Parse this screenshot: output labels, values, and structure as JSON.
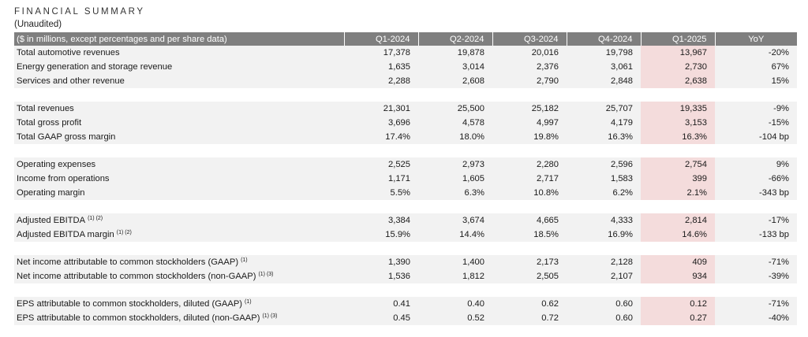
{
  "header": {
    "title": "FINANCIAL SUMMARY",
    "subtitle": "(Unaudited)"
  },
  "table": {
    "columns": [
      "($ in millions, except percentages and per share data)",
      "Q1-2024",
      "Q2-2024",
      "Q3-2024",
      "Q4-2024",
      "Q1-2025",
      "YoY"
    ],
    "groups": [
      [
        {
          "label": "Total automotive revenues",
          "note": "",
          "values": [
            "17,378",
            "19,878",
            "20,016",
            "19,798",
            "13,967",
            "-20%"
          ]
        },
        {
          "label": "Energy generation and storage revenue",
          "note": "",
          "values": [
            "1,635",
            "3,014",
            "2,376",
            "3,061",
            "2,730",
            "67%"
          ]
        },
        {
          "label": "Services and other revenue",
          "note": "",
          "values": [
            "2,288",
            "2,608",
            "2,790",
            "2,848",
            "2,638",
            "15%"
          ]
        }
      ],
      [
        {
          "label": "Total revenues",
          "note": "",
          "values": [
            "21,301",
            "25,500",
            "25,182",
            "25,707",
            "19,335",
            "-9%"
          ]
        },
        {
          "label": "Total gross profit",
          "note": "",
          "values": [
            "3,696",
            "4,578",
            "4,997",
            "4,179",
            "3,153",
            "-15%"
          ]
        },
        {
          "label": "Total GAAP gross margin",
          "note": "",
          "values": [
            "17.4%",
            "18.0%",
            "19.8%",
            "16.3%",
            "16.3%",
            "-104 bp"
          ]
        }
      ],
      [
        {
          "label": "Operating expenses",
          "note": "",
          "values": [
            "2,525",
            "2,973",
            "2,280",
            "2,596",
            "2,754",
            "9%"
          ]
        },
        {
          "label": "Income from operations",
          "note": "",
          "values": [
            "1,171",
            "1,605",
            "2,717",
            "1,583",
            "399",
            "-66%"
          ]
        },
        {
          "label": "Operating margin",
          "note": "",
          "values": [
            "5.5%",
            "6.3%",
            "10.8%",
            "6.2%",
            "2.1%",
            "-343 bp"
          ]
        }
      ],
      [
        {
          "label": "Adjusted EBITDA",
          "note": "(1) (2)",
          "values": [
            "3,384",
            "3,674",
            "4,665",
            "4,333",
            "2,814",
            "-17%"
          ]
        },
        {
          "label": "Adjusted EBITDA margin",
          "note": "(1) (2)",
          "values": [
            "15.9%",
            "14.4%",
            "18.5%",
            "16.9%",
            "14.6%",
            "-133 bp"
          ]
        }
      ],
      [
        {
          "label": "Net income attributable to common stockholders (GAAP)",
          "note": "(1)",
          "values": [
            "1,390",
            "1,400",
            "2,173",
            "2,128",
            "409",
            "-71%"
          ]
        },
        {
          "label": "Net income attributable to common stockholders (non-GAAP)",
          "note": "(1) (3)",
          "values": [
            "1,536",
            "1,812",
            "2,505",
            "2,107",
            "934",
            "-39%"
          ]
        }
      ],
      [
        {
          "label": "EPS attributable to common stockholders, diluted (GAAP)",
          "note": "(1)",
          "values": [
            "0.41",
            "0.40",
            "0.62",
            "0.60",
            "0.12",
            "-71%"
          ]
        },
        {
          "label": "EPS attributable to common stockholders, diluted (non-GAAP)",
          "note": "(1) (3)",
          "values": [
            "0.45",
            "0.52",
            "0.72",
            "0.60",
            "0.27",
            "-40%"
          ]
        }
      ]
    ],
    "highlight_column_index": 4,
    "colors": {
      "header_bg": "#7f7f7f",
      "row_bg": "#f2f2f2",
      "highlight_bg": "#f4dcdc"
    }
  }
}
